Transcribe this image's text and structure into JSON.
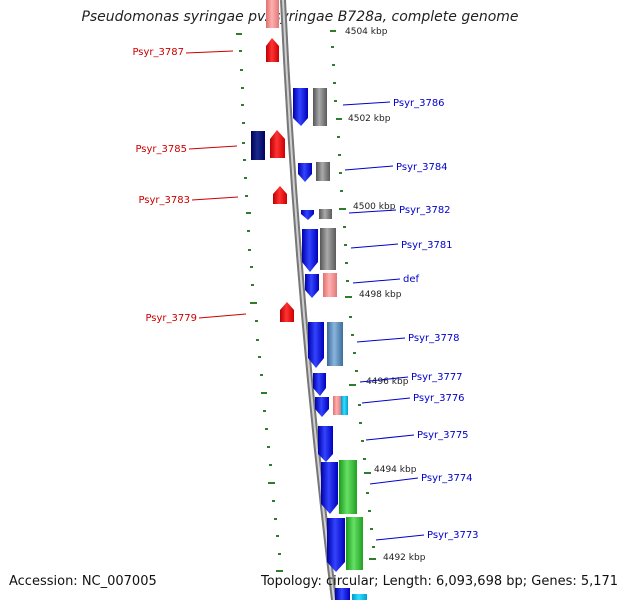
{
  "title": "Pseudomonas syringae pv. syringae B728a, complete genome",
  "footer": {
    "accession": "Accession: NC_007005",
    "summary": "Topology: circular; Length: 6,093,698 bp; Genes: 5,171"
  },
  "colors": {
    "reverse_strand": "#ee0000",
    "forward_strand": "#0000ee",
    "label_reverse": "#cc0000",
    "label_forward": "#0000cc",
    "backbone": "#888888",
    "ticks": "#2e7d2e"
  },
  "scale_labels": [
    "4504 kbp",
    "4502 kbp",
    "4500 kbp",
    "4498 kbp",
    "4496 kbp",
    "4494 kbp",
    "4492 kbp"
  ],
  "reverse_genes": [
    {
      "label": "Psyr_3787"
    },
    {
      "label": "Psyr_3785"
    },
    {
      "label": "Psyr_3783"
    },
    {
      "label": "Psyr_3779"
    }
  ],
  "forward_genes": [
    {
      "label": "Psyr_3786"
    },
    {
      "label": "Psyr_3784"
    },
    {
      "label": "Psyr_3782"
    },
    {
      "label": "Psyr_3781"
    },
    {
      "label": "def"
    },
    {
      "label": "Psyr_3778"
    },
    {
      "label": "Psyr_3777"
    },
    {
      "label": "Psyr_3776"
    },
    {
      "label": "Psyr_3775"
    },
    {
      "label": "Psyr_3774"
    },
    {
      "label": "Psyr_3773"
    }
  ]
}
